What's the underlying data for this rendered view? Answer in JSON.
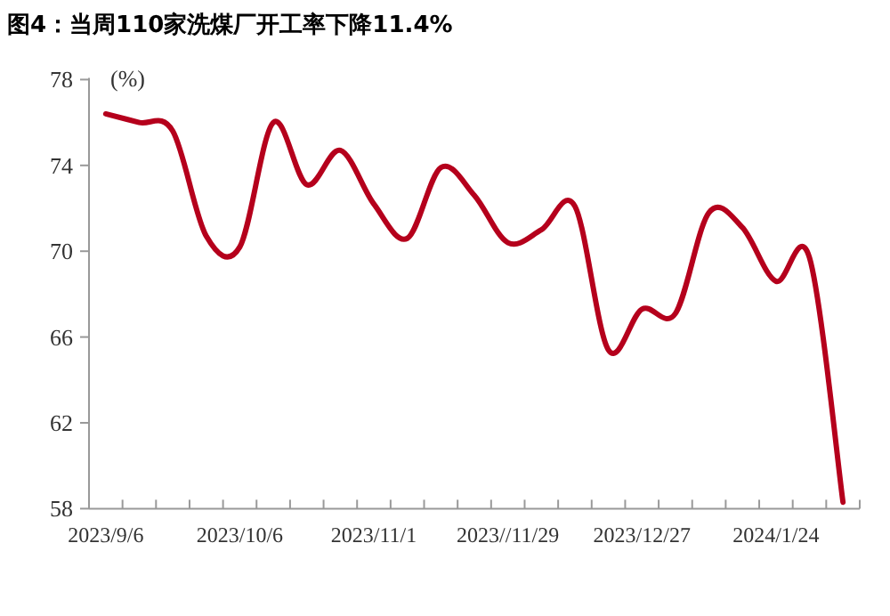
{
  "chart_data": {
    "type": "line",
    "title": "图4：当周110家洗煤厂开工率下降11.4%",
    "ylabel": "(%)",
    "categories": [
      "2023/9/6",
      null,
      null,
      null,
      "2023/10/6",
      null,
      null,
      null,
      "2023/11/1",
      null,
      null,
      null,
      "2023//11/29",
      null,
      null,
      null,
      "2023/12/27",
      null,
      null,
      null,
      "2024/1/24",
      null,
      null
    ],
    "series": [
      {
        "color": "#b5001c",
        "values": [
          76.4,
          76.0,
          75.6,
          70.7,
          70.2,
          76.0,
          73.1,
          74.7,
          72.2,
          70.6,
          73.9,
          72.6,
          70.4,
          71.0,
          72.1,
          65.4,
          67.3,
          67.1,
          71.8,
          71.1,
          68.6,
          69.7,
          58.3
        ]
      }
    ],
    "ylim": [
      58,
      78
    ],
    "yticks": [
      58,
      62,
      66,
      70,
      74,
      78
    ]
  }
}
